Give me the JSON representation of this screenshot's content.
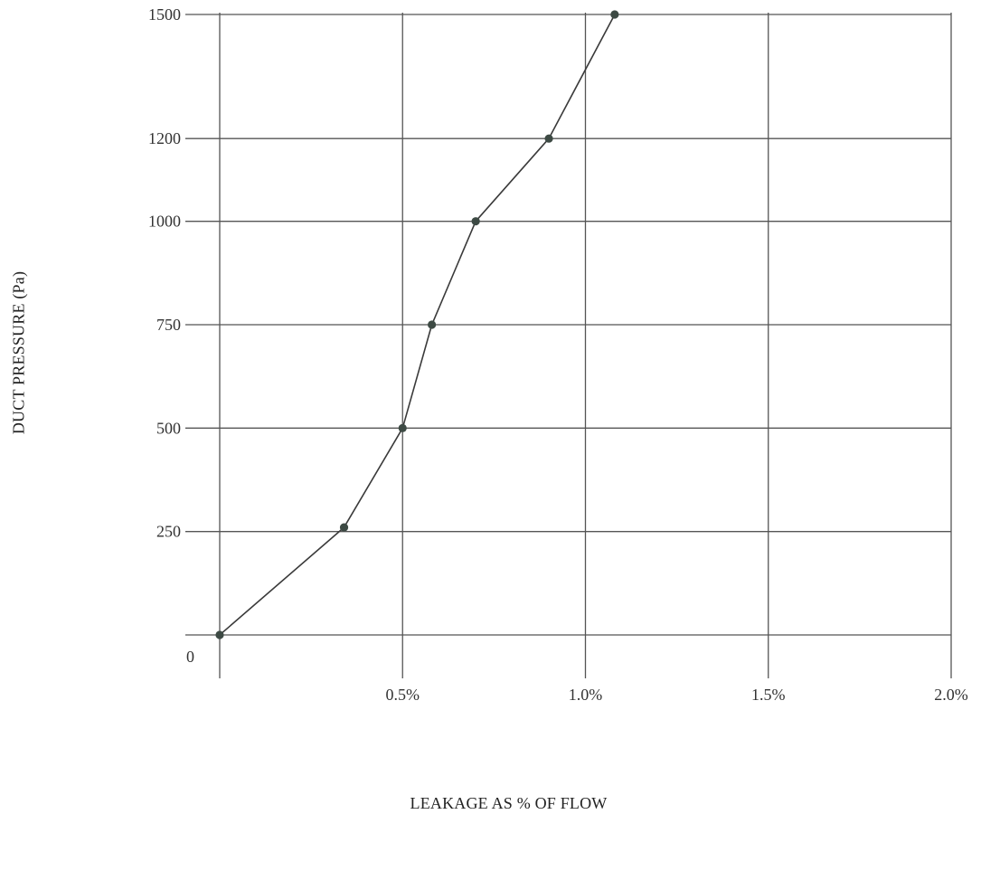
{
  "chart_data": {
    "type": "line",
    "title": "",
    "xlabel": "LEAKAGE AS % OF FLOW",
    "ylabel": "DUCT PRESSURE (Pa)",
    "x_unit": "%",
    "xlim": [
      0,
      2.0
    ],
    "ylim": [
      0,
      1500
    ],
    "x_ticks": [
      {
        "value": 0.5,
        "label": "0.5%"
      },
      {
        "value": 1.0,
        "label": "1.0%"
      },
      {
        "value": 1.5,
        "label": "1.5%"
      },
      {
        "value": 2.0,
        "label": "2.0%"
      }
    ],
    "y_ticks": [
      {
        "value": 0,
        "label": "0"
      },
      {
        "value": 250,
        "label": "250"
      },
      {
        "value": 500,
        "label": "500"
      },
      {
        "value": 750,
        "label": "750"
      },
      {
        "value": 1000,
        "label": "1000"
      },
      {
        "value": 1200,
        "label": "1200"
      },
      {
        "value": 1500,
        "label": "1500"
      }
    ],
    "grid": true,
    "legend": "none",
    "series": [
      {
        "color": "#3a3a3a",
        "marker_color": "#3d4a44",
        "points": [
          {
            "x": 0.0,
            "y": 0
          },
          {
            "x": 0.34,
            "y": 260
          },
          {
            "x": 0.5,
            "y": 500
          },
          {
            "x": 0.58,
            "y": 750
          },
          {
            "x": 0.7,
            "y": 1000
          },
          {
            "x": 0.9,
            "y": 1200
          },
          {
            "x": 1.08,
            "y": 1500
          }
        ]
      }
    ]
  }
}
